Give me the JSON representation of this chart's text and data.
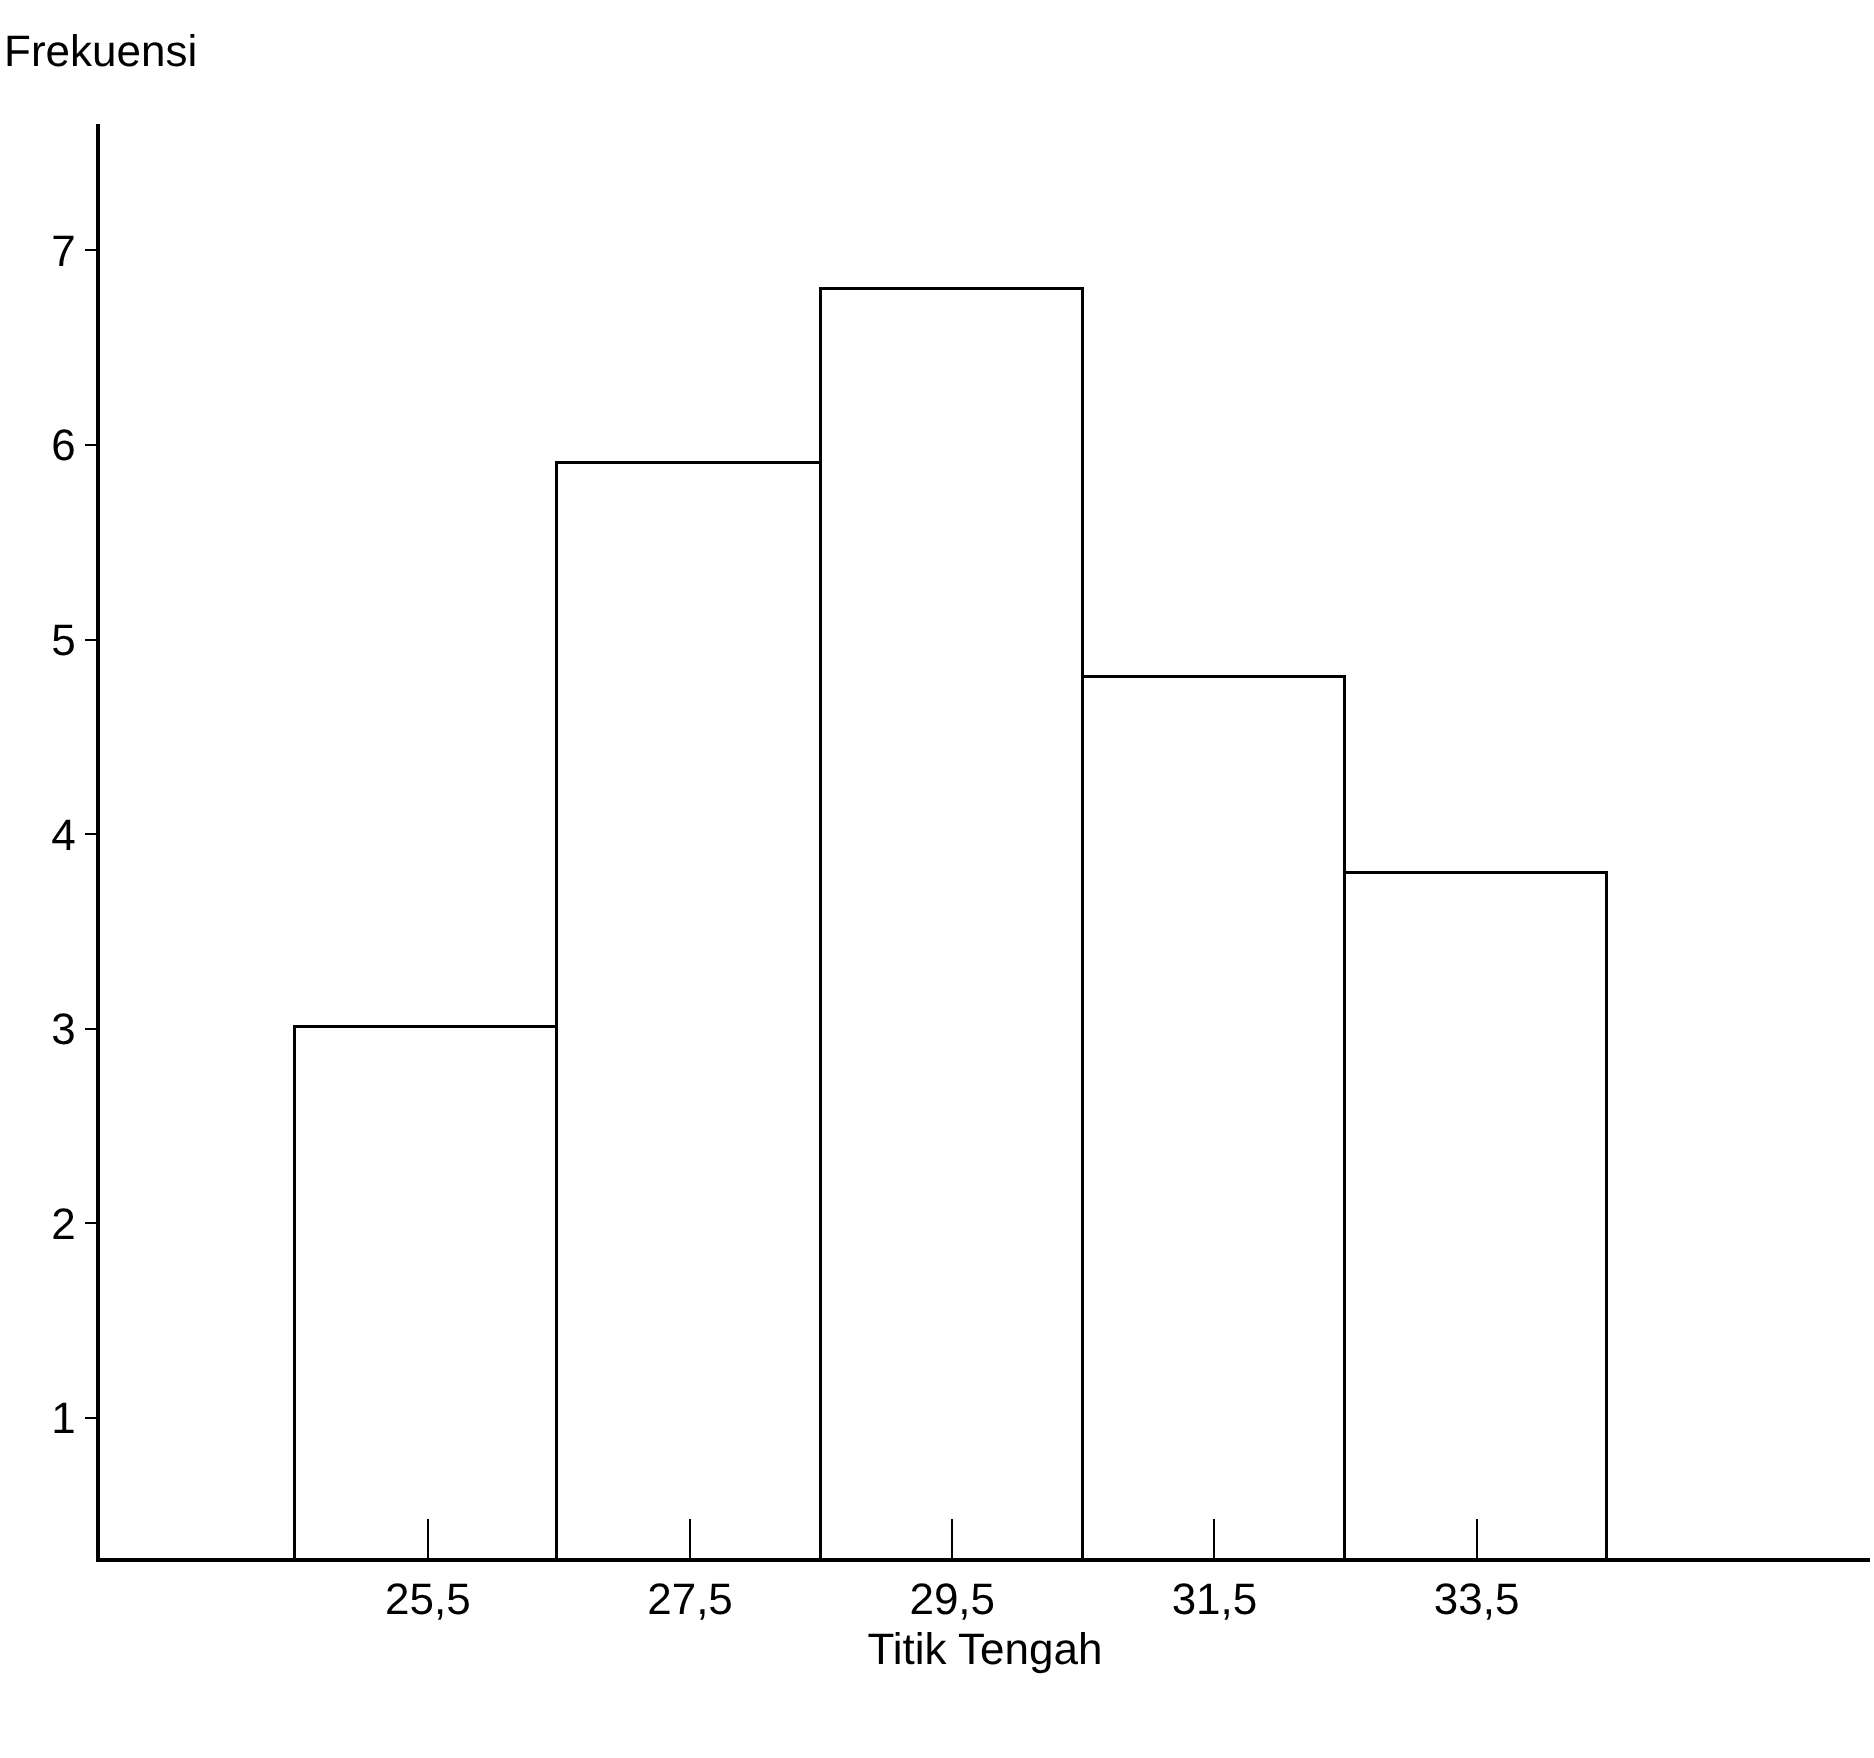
{
  "chart_data": {
    "type": "histogram",
    "xlabel": "Titik Tengah",
    "ylabel": "Frekuensi",
    "bins": [
      24.5,
      26.5,
      28.5,
      30.5,
      32.5,
      34.5
    ],
    "values": [
      3,
      5.9,
      6.8,
      4.8,
      3.8
    ],
    "color": "#ffffff",
    "xlim": [
      23,
      36.5
    ],
    "xticks": [
      {
        "value": 25.5,
        "label": "25,5"
      },
      {
        "value": 27.5,
        "label": "27,5"
      },
      {
        "value": 29.5,
        "label": "29,5"
      },
      {
        "value": 31.5,
        "label": "31,5"
      },
      {
        "value": 33.5,
        "label": "33,5"
      }
    ],
    "ylim": [
      0.28,
      7.65
    ],
    "yticks": [
      1,
      2,
      3,
      4,
      5,
      6,
      7
    ],
    "grid": false
  }
}
